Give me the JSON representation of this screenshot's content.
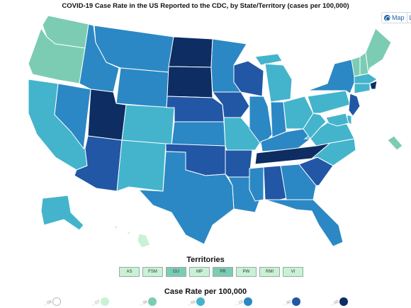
{
  "title": "COVID-19 Case Rate in the US Reported to the CDC, by State/Territory (cases per 100,000)",
  "view_toggle": {
    "map_label": "Map",
    "list_label": "L",
    "map_icon": "globe-icon",
    "list_icon": "list-icon"
  },
  "colors": {
    "scale": [
      "#ffffff",
      "#c9f2d4",
      "#7cccb3",
      "#44b4cc",
      "#2b88c4",
      "#2257a6",
      "#0d2d63"
    ],
    "border": "#ffffff"
  },
  "territories": {
    "title": "Territories",
    "items": [
      {
        "code": "AS",
        "bin": 1
      },
      {
        "code": "FSM",
        "bin": 1
      },
      {
        "code": "GU",
        "bin": 2
      },
      {
        "code": "MP",
        "bin": 1
      },
      {
        "code": "PR",
        "bin": 2
      },
      {
        "code": "PW",
        "bin": 1
      },
      {
        "code": "RMI",
        "bin": 1
      },
      {
        "code": "VI",
        "bin": 1
      }
    ]
  },
  "legend": {
    "title": "Case Rate per 100,000",
    "bins": [
      {
        "label": "…08"
      },
      {
        "label": "…07"
      },
      {
        "label": "…36"
      },
      {
        "label": "…66"
      },
      {
        "label": "…19"
      },
      {
        "label": "…80"
      },
      {
        "label": "…65"
      }
    ]
  },
  "states": {
    "WA": 2,
    "OR": 2,
    "CA": 3,
    "NV": 4,
    "ID": 4,
    "MT": 4,
    "WY": 4,
    "UT": 6,
    "AZ": 5,
    "CO": 3,
    "NM": 3,
    "ND": 6,
    "SD": 6,
    "NE": 5,
    "KS": 4,
    "OK": 5,
    "TX": 4,
    "MN": 4,
    "IA": 5,
    "MO": 3,
    "AR": 5,
    "LA": 4,
    "WI": 5,
    "IL": 4,
    "MI": 3,
    "IN": 4,
    "OH": 3,
    "KY": 4,
    "TN": 6,
    "MS": 4,
    "AL": 5,
    "GA": 4,
    "FL": 4,
    "SC": 5,
    "NC": 3,
    "VA": 3,
    "WV": 3,
    "PA": 3,
    "NY": 4,
    "VT": 2,
    "NH": 2,
    "ME": 2,
    "MA": 3,
    "RI": 6,
    "CT": 3,
    "NJ": 5,
    "DE": 3,
    "MD": 3,
    "DC": 2,
    "AK": 3,
    "HI": 1
  }
}
